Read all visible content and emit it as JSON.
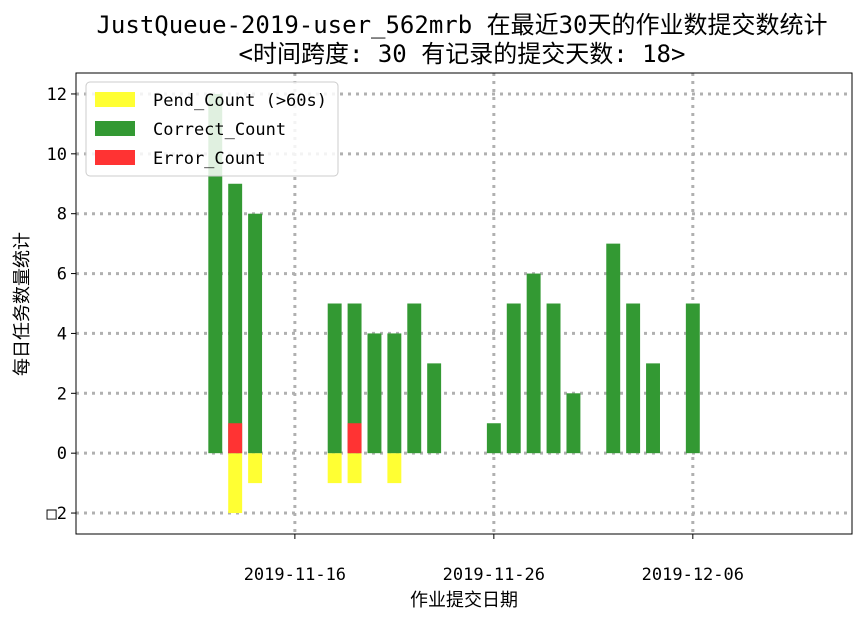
{
  "chart_data": {
    "type": "bar",
    "title": "JustQueue-2019-user_562mrb 在最近30天的作业数提交数统计",
    "subtitle": "<时间跨度: 30  有记录的提交天数: 18>",
    "xlabel": "作业提交日期",
    "ylabel": "每日任务数量统计",
    "xlim": [
      "2019-11-05",
      "2019-12-14"
    ],
    "ylim": [
      -2.7,
      12.7
    ],
    "x_ticks": [
      {
        "date": "2019-11-16",
        "label": "2019-11-16"
      },
      {
        "date": "2019-11-26",
        "label": "2019-11-26"
      },
      {
        "date": "2019-12-06",
        "label": "2019-12-06"
      }
    ],
    "y_ticks": [
      {
        "value": -2,
        "label": "□2"
      },
      {
        "value": 0,
        "label": "0"
      },
      {
        "value": 2,
        "label": "2"
      },
      {
        "value": 4,
        "label": "4"
      },
      {
        "value": 6,
        "label": "6"
      },
      {
        "value": 8,
        "label": "8"
      },
      {
        "value": 10,
        "label": "10"
      },
      {
        "value": 12,
        "label": "12"
      }
    ],
    "grid": true,
    "legend_position": "top-left",
    "series": [
      {
        "name": "Pend_Count (>60s)",
        "color": "#ffff33",
        "points": [
          {
            "date": "2019-11-13",
            "value": -2
          },
          {
            "date": "2019-11-14",
            "value": -1
          },
          {
            "date": "2019-11-18",
            "value": -1
          },
          {
            "date": "2019-11-19",
            "value": -1
          },
          {
            "date": "2019-11-21",
            "value": -1
          }
        ]
      },
      {
        "name": "Correct_Count",
        "color": "#339933",
        "points": [
          {
            "date": "2019-11-12",
            "value": 12
          },
          {
            "date": "2019-11-13",
            "value": 9
          },
          {
            "date": "2019-11-14",
            "value": 8
          },
          {
            "date": "2019-11-18",
            "value": 5
          },
          {
            "date": "2019-11-19",
            "value": 5
          },
          {
            "date": "2019-11-20",
            "value": 4
          },
          {
            "date": "2019-11-21",
            "value": 4
          },
          {
            "date": "2019-11-22",
            "value": 5
          },
          {
            "date": "2019-11-23",
            "value": 3
          },
          {
            "date": "2019-11-26",
            "value": 1
          },
          {
            "date": "2019-11-27",
            "value": 5
          },
          {
            "date": "2019-11-28",
            "value": 6
          },
          {
            "date": "2019-11-29",
            "value": 5
          },
          {
            "date": "2019-11-30",
            "value": 2
          },
          {
            "date": "2019-12-02",
            "value": 7
          },
          {
            "date": "2019-12-03",
            "value": 5
          },
          {
            "date": "2019-12-04",
            "value": 3
          },
          {
            "date": "2019-12-06",
            "value": 5
          }
        ]
      },
      {
        "name": "Error_Count",
        "color": "#ff3333",
        "points": [
          {
            "date": "2019-11-13",
            "value": 1
          },
          {
            "date": "2019-11-19",
            "value": 1
          }
        ]
      }
    ]
  }
}
